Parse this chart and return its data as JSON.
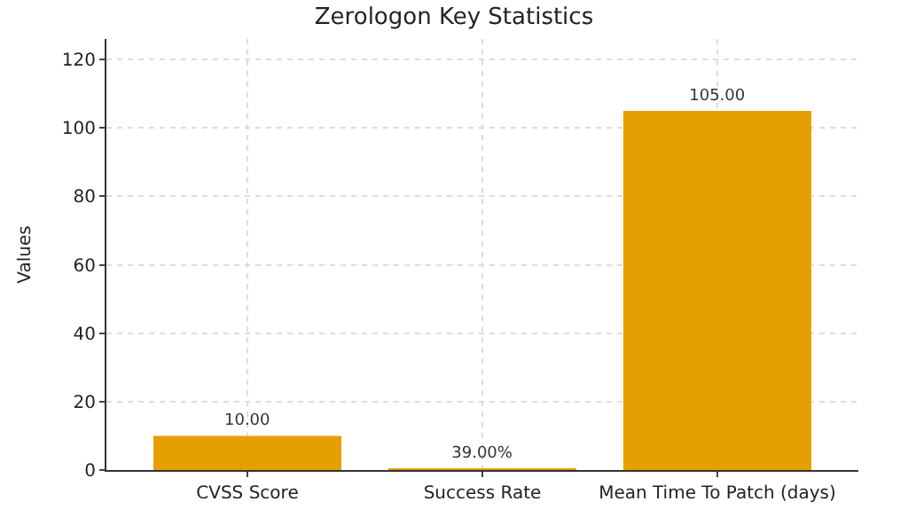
{
  "chart_data": {
    "type": "bar",
    "title": "Zerologon Key Statistics",
    "ylabel": "Values",
    "categories": [
      "CVSS Score",
      "Success Rate",
      "Mean Time To Patch (days)"
    ],
    "values": [
      10,
      0.39,
      105
    ],
    "color": "#e69f00",
    "value_labels": [
      "10.00",
      "39.00%",
      "105.00"
    ],
    "ylim": [
      0,
      126
    ],
    "yticks": [
      0,
      20,
      40,
      60,
      80,
      100,
      120
    ],
    "grid": true
  }
}
